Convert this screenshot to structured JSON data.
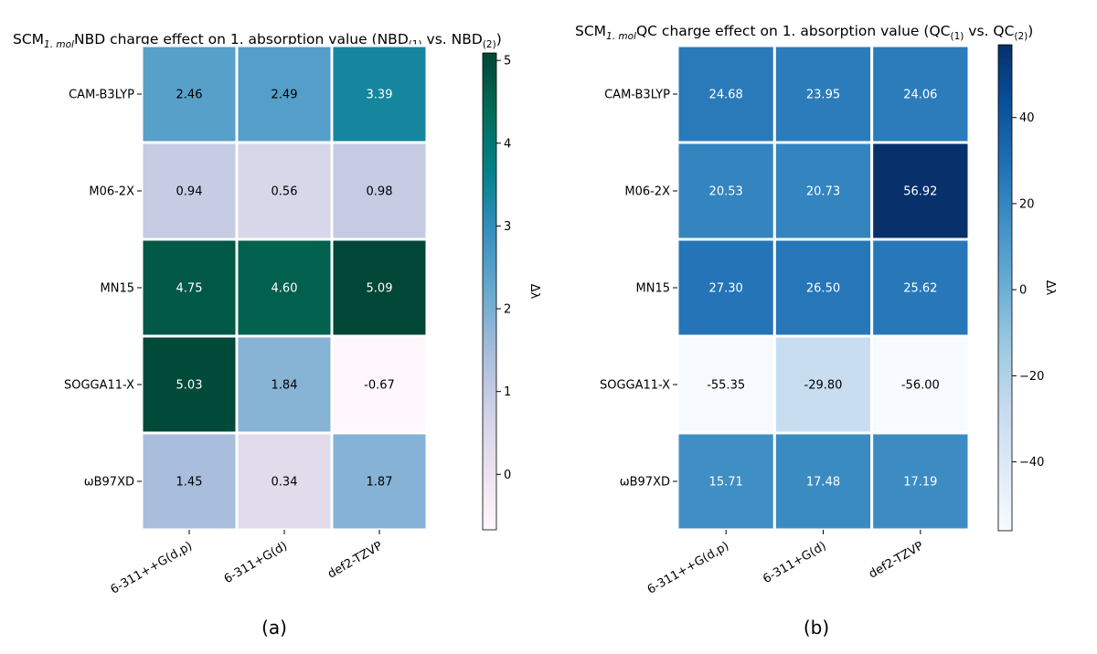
{
  "chart_data": [
    {
      "type": "heatmap",
      "title": {
        "prefix": "SCM",
        "prefix_sub": "1. mol",
        "main": "NBD charge effect on 1. absorption value (NBD",
        "sub1": "(1)",
        "mid": " vs. NBD",
        "sub2": "(2)",
        "end": ")"
      },
      "rows": [
        "CAM-B3LYP",
        "M06-2X",
        "MN15",
        "SOGGA11-X",
        "ωB97XD"
      ],
      "columns": [
        "6-311++G(d,p)",
        "6-311+G(d)",
        "def2-TZVP"
      ],
      "values": [
        [
          2.46,
          2.49,
          3.39
        ],
        [
          0.94,
          0.56,
          0.98
        ],
        [
          4.75,
          4.6,
          5.09
        ],
        [
          5.03,
          1.84,
          -0.67
        ],
        [
          1.45,
          0.34,
          1.87
        ]
      ],
      "value_labels": [
        [
          "2.46",
          "2.49",
          "3.39"
        ],
        [
          "0.94",
          "0.56",
          "0.98"
        ],
        [
          "4.75",
          "4.60",
          "5.09"
        ],
        [
          "5.03",
          "1.84",
          "-0.67"
        ],
        [
          "1.45",
          "0.34",
          "1.87"
        ]
      ],
      "colormap": "PuBuGn",
      "colorbar": {
        "label": "Δλ",
        "range": [
          -0.67,
          5.09
        ],
        "ticks": [
          0,
          1,
          2,
          3,
          4,
          5
        ]
      },
      "panel_label": "(a)"
    },
    {
      "type": "heatmap",
      "title": {
        "prefix": "SCM",
        "prefix_sub": "1. mol",
        "main": "QC charge effect on 1. absorption value (QC",
        "sub1": "(1)",
        "mid": " vs. QC",
        "sub2": "(2)",
        "end": ")"
      },
      "rows": [
        "CAM-B3LYP",
        "M06-2X",
        "MN15",
        "SOGGA11-X",
        "ωB97XD"
      ],
      "columns": [
        "6-311++G(d,p)",
        "6-311+G(d)",
        "def2-TZVP"
      ],
      "values": [
        [
          24.68,
          23.95,
          24.06
        ],
        [
          20.53,
          20.73,
          56.92
        ],
        [
          27.3,
          26.5,
          25.62
        ],
        [
          -55.35,
          -29.8,
          -56.0
        ],
        [
          15.71,
          17.48,
          17.19
        ]
      ],
      "value_labels": [
        [
          "24.68",
          "23.95",
          "24.06"
        ],
        [
          "20.53",
          "20.73",
          "56.92"
        ],
        [
          "27.30",
          "26.50",
          "25.62"
        ],
        [
          "-55.35",
          "-29.80",
          "-56.00"
        ],
        [
          "15.71",
          "17.48",
          "17.19"
        ]
      ],
      "colormap": "Blues",
      "colorbar": {
        "label": "Δλ",
        "range": [
          -56.0,
          56.92
        ],
        "ticks": [
          -40,
          -20,
          0,
          20,
          40
        ],
        "tick_labels": [
          "−40",
          "−20",
          "0",
          "20",
          "40"
        ]
      },
      "panel_label": "(b)"
    }
  ]
}
